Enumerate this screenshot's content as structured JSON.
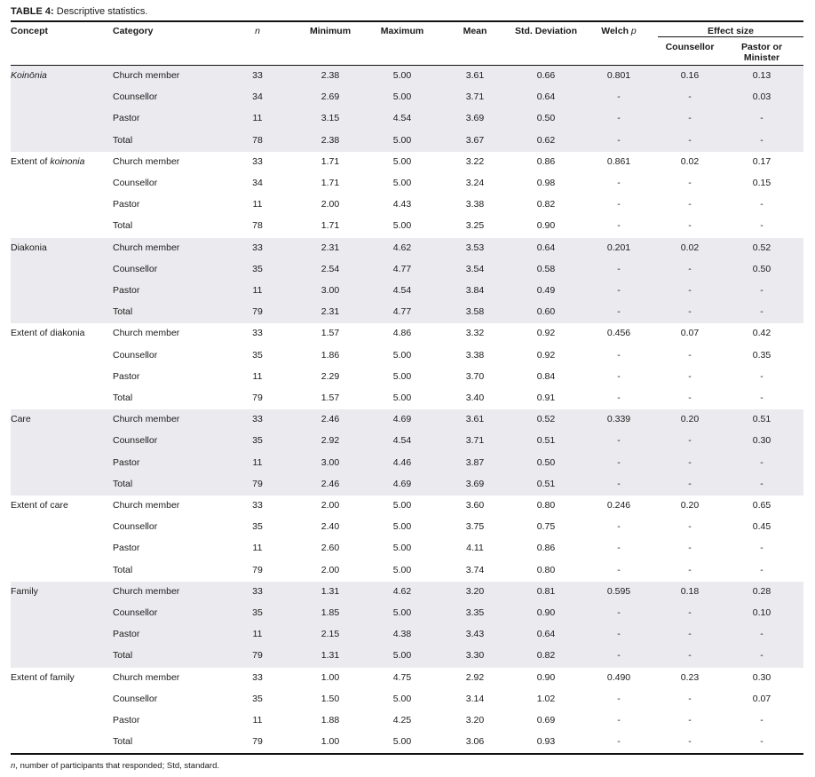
{
  "caption": {
    "label": "TABLE 4:",
    "text": " Descriptive statistics."
  },
  "headers": {
    "concept": "Concept",
    "category": "Category",
    "n": "n",
    "min": "Minimum",
    "max": "Maximum",
    "mean": "Mean",
    "sd": "Std. Deviation",
    "welch": "Welch ",
    "welch_italic": "p",
    "effect_size": "Effect size",
    "counsellor": "Counsellor",
    "pastor_l1": "Pastor or",
    "pastor_l2": "Minister"
  },
  "groups": [
    {
      "concept_prefix": "",
      "concept_italic": "Koinōnia",
      "shaded": true,
      "rows": [
        [
          "Church member",
          "33",
          "2.38",
          "5.00",
          "3.61",
          "0.66",
          "0.801",
          "0.16",
          "0.13"
        ],
        [
          "Counsellor",
          "34",
          "2.69",
          "5.00",
          "3.71",
          "0.64",
          "-",
          "-",
          "0.03"
        ],
        [
          "Pastor",
          "11",
          "3.15",
          "4.54",
          "3.69",
          "0.50",
          "-",
          "-",
          "-"
        ],
        [
          "Total",
          "78",
          "2.38",
          "5.00",
          "3.67",
          "0.62",
          "-",
          "-",
          "-"
        ]
      ]
    },
    {
      "concept_prefix": "Extent of ",
      "concept_italic": "koinonia",
      "shaded": false,
      "rows": [
        [
          "Church member",
          "33",
          "1.71",
          "5.00",
          "3.22",
          "0.86",
          "0.861",
          "0.02",
          "0.17"
        ],
        [
          "Counsellor",
          "34",
          "1.71",
          "5.00",
          "3.24",
          "0.98",
          "-",
          "-",
          "0.15"
        ],
        [
          "Pastor",
          "11",
          "2.00",
          "4.43",
          "3.38",
          "0.82",
          "-",
          "-",
          "-"
        ],
        [
          "Total",
          "78",
          "1.71",
          "5.00",
          "3.25",
          "0.90",
          "-",
          "-",
          "-"
        ]
      ]
    },
    {
      "concept_prefix": "Diakonia",
      "concept_italic": "",
      "shaded": true,
      "rows": [
        [
          "Church member",
          "33",
          "2.31",
          "4.62",
          "3.53",
          "0.64",
          "0.201",
          "0.02",
          "0.52"
        ],
        [
          "Counsellor",
          "35",
          "2.54",
          "4.77",
          "3.54",
          "0.58",
          "-",
          "-",
          "0.50"
        ],
        [
          "Pastor",
          "11",
          "3.00",
          "4.54",
          "3.84",
          "0.49",
          "-",
          "-",
          "-"
        ],
        [
          "Total",
          "79",
          "2.31",
          "4.77",
          "3.58",
          "0.60",
          "-",
          "-",
          "-"
        ]
      ]
    },
    {
      "concept_prefix": "Extent of diakonia",
      "concept_italic": "",
      "shaded": false,
      "rows": [
        [
          "Church member",
          "33",
          "1.57",
          "4.86",
          "3.32",
          "0.92",
          "0.456",
          "0.07",
          "0.42"
        ],
        [
          "Counsellor",
          "35",
          "1.86",
          "5.00",
          "3.38",
          "0.92",
          "-",
          "-",
          "0.35"
        ],
        [
          "Pastor",
          "11",
          "2.29",
          "5.00",
          "3.70",
          "0.84",
          "-",
          "-",
          "-"
        ],
        [
          "Total",
          "79",
          "1.57",
          "5.00",
          "3.40",
          "0.91",
          "-",
          "-",
          "-"
        ]
      ]
    },
    {
      "concept_prefix": "Care",
      "concept_italic": "",
      "shaded": true,
      "rows": [
        [
          "Church member",
          "33",
          "2.46",
          "4.69",
          "3.61",
          "0.52",
          "0.339",
          "0.20",
          "0.51"
        ],
        [
          "Counsellor",
          "35",
          "2.92",
          "4.54",
          "3.71",
          "0.51",
          "-",
          "-",
          "0.30"
        ],
        [
          "Pastor",
          "11",
          "3.00",
          "4.46",
          "3.87",
          "0.50",
          "-",
          "-",
          "-"
        ],
        [
          "Total",
          "79",
          "2.46",
          "4.69",
          "3.69",
          "0.51",
          "-",
          "-",
          "-"
        ]
      ]
    },
    {
      "concept_prefix": "Extent of care",
      "concept_italic": "",
      "shaded": false,
      "rows": [
        [
          "Church member",
          "33",
          "2.00",
          "5.00",
          "3.60",
          "0.80",
          "0.246",
          "0.20",
          "0.65"
        ],
        [
          "Counsellor",
          "35",
          "2.40",
          "5.00",
          "3.75",
          "0.75",
          "-",
          "-",
          "0.45"
        ],
        [
          "Pastor",
          "11",
          "2.60",
          "5.00",
          "4.11",
          "0.86",
          "-",
          "-",
          "-"
        ],
        [
          "Total",
          "79",
          "2.00",
          "5.00",
          "3.74",
          "0.80",
          "-",
          "-",
          "-"
        ]
      ]
    },
    {
      "concept_prefix": "Family",
      "concept_italic": "",
      "shaded": true,
      "rows": [
        [
          "Church member",
          "33",
          "1.31",
          "4.62",
          "3.20",
          "0.81",
          "0.595",
          "0.18",
          "0.28"
        ],
        [
          "Counsellor",
          "35",
          "1.85",
          "5.00",
          "3.35",
          "0.90",
          "-",
          "-",
          "0.10"
        ],
        [
          "Pastor",
          "11",
          "2.15",
          "4.38",
          "3.43",
          "0.64",
          "-",
          "-",
          "-"
        ],
        [
          "Total",
          "79",
          "1.31",
          "5.00",
          "3.30",
          "0.82",
          "-",
          "-",
          "-"
        ]
      ]
    },
    {
      "concept_prefix": "Extent of family",
      "concept_italic": "",
      "shaded": false,
      "rows": [
        [
          "Church member",
          "33",
          "1.00",
          "4.75",
          "2.92",
          "0.90",
          "0.490",
          "0.23",
          "0.30"
        ],
        [
          "Counsellor",
          "35",
          "1.50",
          "5.00",
          "3.14",
          "1.02",
          "-",
          "-",
          "0.07"
        ],
        [
          "Pastor",
          "11",
          "1.88",
          "4.25",
          "3.20",
          "0.69",
          "-",
          "-",
          "-"
        ],
        [
          "Total",
          "79",
          "1.00",
          "5.00",
          "3.06",
          "0.93",
          "-",
          "-",
          "-"
        ]
      ]
    }
  ],
  "footnote": {
    "italic": "n",
    "text": ", number of participants that responded; Std, standard."
  }
}
